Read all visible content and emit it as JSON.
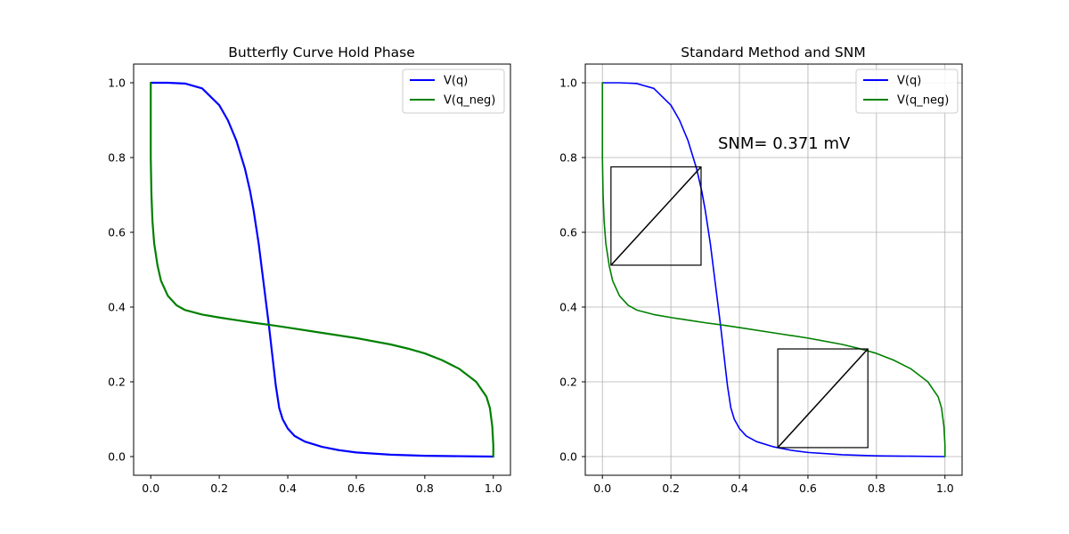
{
  "chart_data": [
    {
      "type": "line",
      "title": "Butterfly Curve Hold Phase",
      "xlabel": "",
      "ylabel": "",
      "xlim": [
        -0.05,
        1.05
      ],
      "ylim": [
        -0.05,
        1.05
      ],
      "xticks": [
        0.0,
        0.2,
        0.4,
        0.6,
        0.8,
        1.0
      ],
      "yticks": [
        0.0,
        0.2,
        0.4,
        0.6,
        0.8,
        1.0
      ],
      "tick_labels": [
        "0.0",
        "0.2",
        "0.4",
        "0.6",
        "0.8",
        "1.0"
      ],
      "grid": false,
      "legend_position": "top-right",
      "series": [
        {
          "name": "V(q)",
          "color": "#0000ff",
          "x": [
            0.0,
            0.05,
            0.1,
            0.15,
            0.2,
            0.225,
            0.25,
            0.275,
            0.29,
            0.3,
            0.315,
            0.33,
            0.345,
            0.355,
            0.365,
            0.375,
            0.385,
            0.4,
            0.42,
            0.45,
            0.5,
            0.55,
            0.6,
            0.7,
            0.8,
            0.9,
            1.0
          ],
          "y": [
            1.0,
            1.0,
            0.998,
            0.985,
            0.94,
            0.9,
            0.845,
            0.77,
            0.71,
            0.66,
            0.57,
            0.46,
            0.35,
            0.27,
            0.19,
            0.13,
            0.1,
            0.075,
            0.055,
            0.04,
            0.026,
            0.017,
            0.011,
            0.005,
            0.002,
            0.001,
            0.0
          ]
        },
        {
          "name": "V(q_neg)",
          "color": "#008000",
          "x": [
            0.0,
            0.0,
            0.002,
            0.005,
            0.01,
            0.02,
            0.03,
            0.05,
            0.075,
            0.1,
            0.15,
            0.2,
            0.25,
            0.3,
            0.35,
            0.4,
            0.5,
            0.6,
            0.7,
            0.75,
            0.8,
            0.85,
            0.9,
            0.95,
            0.98,
            0.99,
            0.997,
            1.0,
            1.0
          ],
          "y": [
            1.0,
            0.8,
            0.7,
            0.63,
            0.57,
            0.51,
            0.47,
            0.43,
            0.405,
            0.392,
            0.38,
            0.372,
            0.365,
            0.358,
            0.352,
            0.345,
            0.331,
            0.317,
            0.3,
            0.289,
            0.276,
            0.258,
            0.235,
            0.2,
            0.16,
            0.13,
            0.08,
            0.03,
            0.0
          ]
        }
      ]
    },
    {
      "type": "line",
      "title": "Standard Method and SNM",
      "xlabel": "",
      "ylabel": "",
      "xlim": [
        -0.05,
        1.05
      ],
      "ylim": [
        -0.05,
        1.05
      ],
      "xticks": [
        0.0,
        0.2,
        0.4,
        0.6,
        0.8,
        1.0
      ],
      "yticks": [
        0.0,
        0.2,
        0.4,
        0.6,
        0.8,
        1.0
      ],
      "tick_labels": [
        "0.0",
        "0.2",
        "0.4",
        "0.6",
        "0.8",
        "1.0"
      ],
      "grid": true,
      "legend_position": "top-right",
      "annotation": "SNM= 0.371  mV",
      "series": [
        {
          "name": "V(q)",
          "color": "#0000ff",
          "x": [
            0.0,
            0.05,
            0.1,
            0.15,
            0.2,
            0.225,
            0.25,
            0.275,
            0.29,
            0.3,
            0.315,
            0.33,
            0.345,
            0.355,
            0.365,
            0.375,
            0.385,
            0.4,
            0.42,
            0.45,
            0.5,
            0.55,
            0.6,
            0.7,
            0.8,
            0.9,
            1.0
          ],
          "y": [
            1.0,
            1.0,
            0.998,
            0.985,
            0.94,
            0.9,
            0.845,
            0.77,
            0.71,
            0.66,
            0.57,
            0.46,
            0.35,
            0.27,
            0.19,
            0.13,
            0.1,
            0.075,
            0.055,
            0.04,
            0.026,
            0.017,
            0.011,
            0.005,
            0.002,
            0.001,
            0.0
          ]
        },
        {
          "name": "V(q_neg)",
          "color": "#008000",
          "x": [
            0.0,
            0.0,
            0.002,
            0.005,
            0.01,
            0.02,
            0.03,
            0.05,
            0.075,
            0.1,
            0.15,
            0.2,
            0.25,
            0.3,
            0.35,
            0.4,
            0.5,
            0.6,
            0.7,
            0.75,
            0.8,
            0.85,
            0.9,
            0.95,
            0.98,
            0.99,
            0.997,
            1.0,
            1.0
          ],
          "y": [
            1.0,
            0.8,
            0.7,
            0.63,
            0.57,
            0.51,
            0.47,
            0.43,
            0.405,
            0.392,
            0.38,
            0.372,
            0.365,
            0.358,
            0.352,
            0.345,
            0.331,
            0.317,
            0.3,
            0.289,
            0.276,
            0.258,
            0.235,
            0.2,
            0.16,
            0.13,
            0.08,
            0.03,
            0.0
          ]
        }
      ],
      "snm_squares": [
        {
          "x0": 0.025,
          "y0": 0.512,
          "x1": 0.288,
          "y1": 0.775
        },
        {
          "x0": 0.512,
          "y0": 0.024,
          "x1": 0.775,
          "y1": 0.288
        }
      ]
    }
  ]
}
